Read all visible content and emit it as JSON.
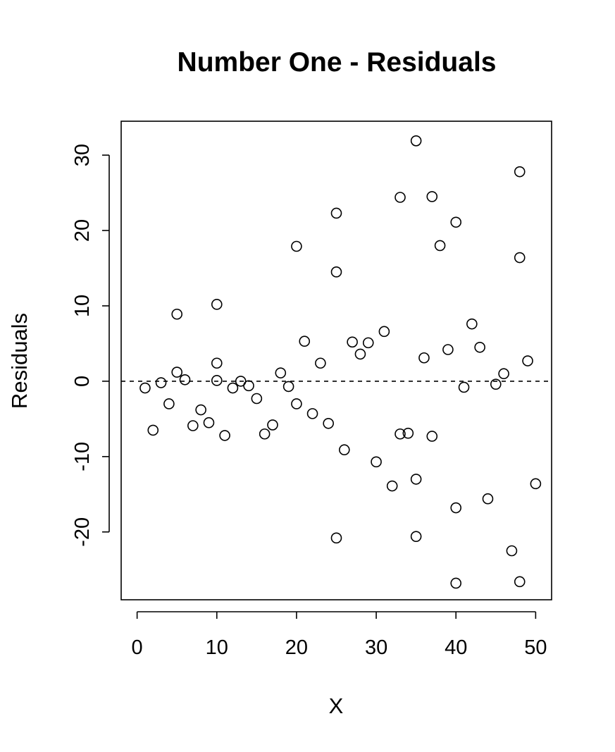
{
  "chart_data": {
    "type": "scatter",
    "title": "Number One - Residuals",
    "xlabel": "X",
    "ylabel": "Residuals",
    "xlim": [
      -2,
      52
    ],
    "ylim": [
      -29,
      34.5
    ],
    "x_ticks": [
      0,
      10,
      20,
      30,
      40,
      50
    ],
    "y_ticks": [
      -20,
      -10,
      0,
      10,
      20,
      30
    ],
    "x_tick_labels": [
      "0",
      "10",
      "20",
      "30",
      "40",
      "50"
    ],
    "y_tick_labels": [
      "-20",
      "-10",
      "0",
      "10",
      "20",
      "30"
    ],
    "reference_line": {
      "y": 0,
      "style": "dashed"
    },
    "grid": false,
    "points": [
      {
        "x": 1,
        "y": -0.9
      },
      {
        "x": 2,
        "y": -6.5
      },
      {
        "x": 3,
        "y": -0.2
      },
      {
        "x": 4,
        "y": -3.0
      },
      {
        "x": 5,
        "y": 8.9
      },
      {
        "x": 5,
        "y": 1.2
      },
      {
        "x": 6,
        "y": 0.2
      },
      {
        "x": 7,
        "y": -5.9
      },
      {
        "x": 8,
        "y": -3.8
      },
      {
        "x": 9,
        "y": -5.5
      },
      {
        "x": 10,
        "y": 10.2
      },
      {
        "x": 10,
        "y": 2.4
      },
      {
        "x": 10,
        "y": 0.1
      },
      {
        "x": 11,
        "y": -7.2
      },
      {
        "x": 12,
        "y": -0.9
      },
      {
        "x": 13,
        "y": 0.0
      },
      {
        "x": 14,
        "y": -0.6
      },
      {
        "x": 15,
        "y": -2.3
      },
      {
        "x": 16,
        "y": -7.0
      },
      {
        "x": 17,
        "y": -5.8
      },
      {
        "x": 18,
        "y": 1.1
      },
      {
        "x": 19,
        "y": -0.7
      },
      {
        "x": 20,
        "y": 17.9
      },
      {
        "x": 20,
        "y": -3.0
      },
      {
        "x": 21,
        "y": 5.3
      },
      {
        "x": 22,
        "y": -4.3
      },
      {
        "x": 23,
        "y": 2.4
      },
      {
        "x": 24,
        "y": -5.6
      },
      {
        "x": 25,
        "y": 22.3
      },
      {
        "x": 25,
        "y": 14.5
      },
      {
        "x": 25,
        "y": -20.8
      },
      {
        "x": 26,
        "y": -9.1
      },
      {
        "x": 27,
        "y": 5.2
      },
      {
        "x": 28,
        "y": 3.6
      },
      {
        "x": 29,
        "y": 5.1
      },
      {
        "x": 30,
        "y": -10.7
      },
      {
        "x": 31,
        "y": 6.6
      },
      {
        "x": 32,
        "y": -13.9
      },
      {
        "x": 33,
        "y": 24.4
      },
      {
        "x": 33,
        "y": -7.0
      },
      {
        "x": 34,
        "y": -6.9
      },
      {
        "x": 35,
        "y": 31.9
      },
      {
        "x": 35,
        "y": -13.0
      },
      {
        "x": 35,
        "y": -20.6
      },
      {
        "x": 36,
        "y": 3.1
      },
      {
        "x": 37,
        "y": 24.5
      },
      {
        "x": 37,
        "y": -7.3
      },
      {
        "x": 38,
        "y": 18.0
      },
      {
        "x": 39,
        "y": 4.2
      },
      {
        "x": 40,
        "y": 21.1
      },
      {
        "x": 40,
        "y": -16.8
      },
      {
        "x": 40,
        "y": -26.8
      },
      {
        "x": 41,
        "y": -0.8
      },
      {
        "x": 42,
        "y": 7.6
      },
      {
        "x": 43,
        "y": 4.5
      },
      {
        "x": 44,
        "y": -15.6
      },
      {
        "x": 45,
        "y": -0.4
      },
      {
        "x": 46,
        "y": 1.0
      },
      {
        "x": 47,
        "y": -22.5
      },
      {
        "x": 48,
        "y": 27.8
      },
      {
        "x": 48,
        "y": 16.4
      },
      {
        "x": 48,
        "y": -26.6
      },
      {
        "x": 49,
        "y": 2.7
      },
      {
        "x": 50,
        "y": -13.6
      }
    ]
  }
}
